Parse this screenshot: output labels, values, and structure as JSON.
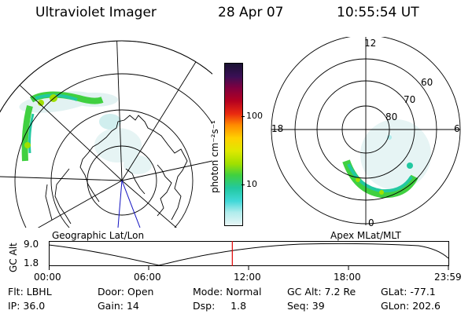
{
  "header": {
    "instrument": "Ultraviolet Imager",
    "date": "28 Apr 07",
    "time": "10:55:54 UT"
  },
  "geo_panel": {
    "label": "Geographic Lat/Lon"
  },
  "colorbar": {
    "unit_label": "photon cm⁻²s⁻¹",
    "ticks": [
      "100",
      "10"
    ],
    "colors": [
      "#1a1233",
      "#3a0f55",
      "#800040",
      "#b40020",
      "#ea2a10",
      "#ff8a00",
      "#ffd000",
      "#dfe800",
      "#a0e000",
      "#40d040",
      "#22c8a0",
      "#40d8d8",
      "#b0ecec",
      "#e8f6f6"
    ]
  },
  "mag_panel": {
    "label": "Apex MLat/MLT",
    "mlt_labels": [
      "12",
      "18",
      "6",
      "0"
    ],
    "lat_labels": [
      "60",
      "70",
      "80"
    ]
  },
  "altitude_plot": {
    "ylabel": "GC Alt",
    "yticks": [
      "9.0",
      "1.8"
    ],
    "xticks": [
      "00:00",
      "06:00",
      "12:00",
      "18:00",
      "23:59"
    ],
    "marker_fraction": 0.4583
  },
  "info_rows": [
    [
      {
        "label": "Flt:",
        "value": "LBHL"
      },
      {
        "label": "Door:",
        "value": "Open"
      },
      {
        "label": "Mode:",
        "value": "Normal"
      },
      {
        "label": "GC Alt:",
        "value": "7.2 Re"
      },
      {
        "label": "GLat:",
        "value": "-77.1"
      }
    ],
    [
      {
        "label": "IP:",
        "value": "36.0"
      },
      {
        "label": "Gain:",
        "value": "14"
      },
      {
        "label": "Dsp:",
        "value": "1.8"
      },
      {
        "label": "Seq:",
        "value": "39"
      },
      {
        "label": "GLon:",
        "value": "202.6"
      }
    ]
  ]
}
